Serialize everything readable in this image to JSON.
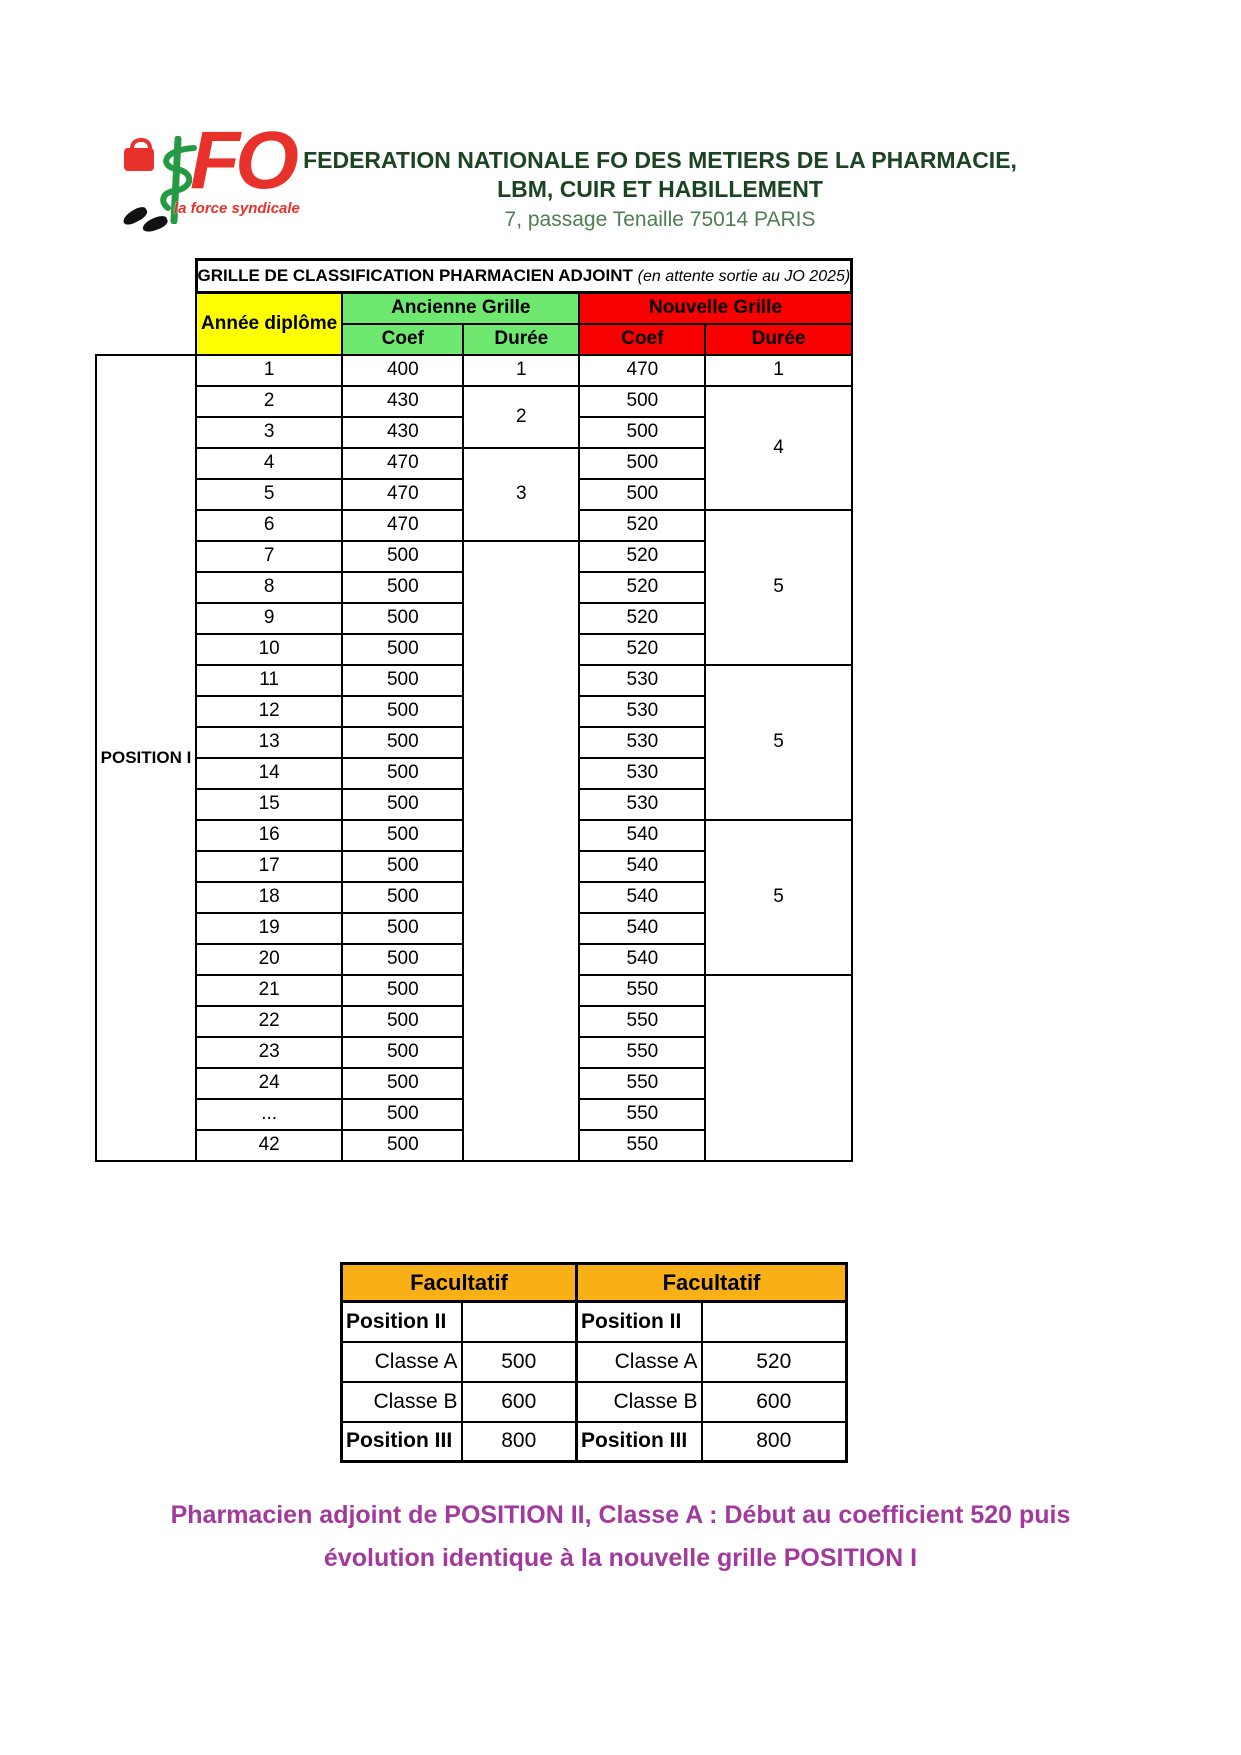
{
  "logo": {
    "fo": "FO",
    "tagline": "la force syndicale"
  },
  "header": {
    "line1": "FEDERATION NATIONALE FO DES METIERS DE LA PHARMACIE,",
    "line2": "LBM, CUIR ET HABILLEMENT",
    "address": "7, passage Tenaille  75014 PARIS"
  },
  "colors": {
    "header_dark_green": "#1B4522",
    "address_green": "#4E7D52",
    "year_yellow": "#FFFF00",
    "ancienne_green": "#6FE86F",
    "nouvelle_red": "#F80000",
    "facultatif_orange": "#F9B016",
    "note_purple": "#A23A9D",
    "logo_red": "#E8312A",
    "caduceus_green": "#249B42"
  },
  "main_table": {
    "title_bold": "GRILLE DE CLASSIFICATION PHARMACIEN ADJOINT",
    "title_italic": "(en attente sortie au JO 2025)",
    "year_header": "Année diplôme",
    "ancienne_header": "Ancienne Grille",
    "nouvelle_header": "Nouvelle Grille",
    "coef_header": "Coef",
    "duree_header": "Durée",
    "position_label": "POSITION I",
    "body_rows": [
      {
        "year": "1",
        "anc_coef": "400",
        "nouv_coef": "470",
        "anc_duree": {
          "text": "1",
          "span": 1
        },
        "nouv_duree": {
          "text": "1",
          "span": 1
        }
      },
      {
        "year": "2",
        "anc_coef": "430",
        "nouv_coef": "500",
        "anc_duree": {
          "text": "2",
          "span": 2
        },
        "nouv_duree": {
          "text": "4",
          "span": 4
        }
      },
      {
        "year": "3",
        "anc_coef": "430",
        "nouv_coef": "500"
      },
      {
        "year": "4",
        "anc_coef": "470",
        "nouv_coef": "500",
        "anc_duree": {
          "text": "3",
          "span": 3
        }
      },
      {
        "year": "5",
        "anc_coef": "470",
        "nouv_coef": "500"
      },
      {
        "year": "6",
        "anc_coef": "470",
        "nouv_coef": "520",
        "nouv_duree": {
          "text": "5",
          "span": 5
        }
      },
      {
        "year": "7",
        "anc_coef": "500",
        "nouv_coef": "520",
        "anc_duree": {
          "text": "",
          "span": 20
        }
      },
      {
        "year": "8",
        "anc_coef": "500",
        "nouv_coef": "520"
      },
      {
        "year": "9",
        "anc_coef": "500",
        "nouv_coef": "520"
      },
      {
        "year": "10",
        "anc_coef": "500",
        "nouv_coef": "520"
      },
      {
        "year": "11",
        "anc_coef": "500",
        "nouv_coef": "530",
        "nouv_duree": {
          "text": "5",
          "span": 5
        }
      },
      {
        "year": "12",
        "anc_coef": "500",
        "nouv_coef": "530"
      },
      {
        "year": "13",
        "anc_coef": "500",
        "nouv_coef": "530"
      },
      {
        "year": "14",
        "anc_coef": "500",
        "nouv_coef": "530"
      },
      {
        "year": "15",
        "anc_coef": "500",
        "nouv_coef": "530"
      },
      {
        "year": "16",
        "anc_coef": "500",
        "nouv_coef": "540",
        "nouv_duree": {
          "text": "5",
          "span": 5
        }
      },
      {
        "year": "17",
        "anc_coef": "500",
        "nouv_coef": "540"
      },
      {
        "year": "18",
        "anc_coef": "500",
        "nouv_coef": "540"
      },
      {
        "year": "19",
        "anc_coef": "500",
        "nouv_coef": "540"
      },
      {
        "year": "20",
        "anc_coef": "500",
        "nouv_coef": "540"
      },
      {
        "year": "21",
        "anc_coef": "500",
        "nouv_coef": "550",
        "nouv_duree": {
          "text": "",
          "span": 6
        }
      },
      {
        "year": "22",
        "anc_coef": "500",
        "nouv_coef": "550"
      },
      {
        "year": "23",
        "anc_coef": "500",
        "nouv_coef": "550"
      },
      {
        "year": "24",
        "anc_coef": "500",
        "nouv_coef": "550"
      },
      {
        "year": "...",
        "anc_coef": "500",
        "nouv_coef": "550"
      },
      {
        "year": "42",
        "anc_coef": "500",
        "nouv_coef": "550"
      }
    ]
  },
  "facultatif_table": {
    "header_left": "Facultatif",
    "header_right": "Facultatif",
    "left": {
      "position2": "Position II",
      "classe_a": "Classe A",
      "classe_a_value": "500",
      "classe_b": "Classe B",
      "classe_b_value": "600",
      "position3": "Position III",
      "position3_value": "800"
    },
    "right": {
      "position2": "Position II",
      "classe_a": "Classe A",
      "classe_a_value": "520",
      "classe_b": "Classe B",
      "classe_b_value": "600",
      "position3": "Position III",
      "position3_value": "800"
    }
  },
  "note": {
    "line1": "Pharmacien adjoint de POSITION II, Classe A : Début au coefficient 520 puis",
    "line2": "évolution identique à la nouvelle grille POSITION I"
  }
}
